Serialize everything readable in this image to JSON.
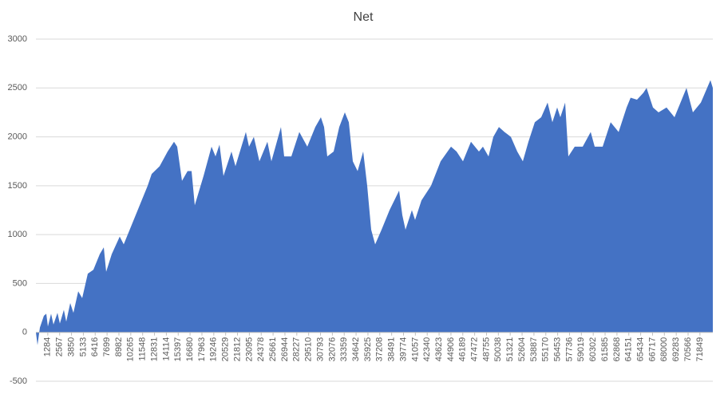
{
  "chart_data": {
    "type": "area",
    "title": "Net",
    "color": "#4472c4",
    "grid": true,
    "xlim": [
      1,
      73242
    ],
    "ylim": [
      -500,
      3000
    ],
    "yticks": [
      -500,
      0,
      500,
      1000,
      1500,
      2000,
      2500,
      3000
    ],
    "xticks": [
      1284,
      2567,
      3850,
      5133,
      6416,
      7699,
      8982,
      10265,
      11548,
      12831,
      14114,
      15397,
      16680,
      17963,
      19246,
      20529,
      21812,
      23095,
      24378,
      25661,
      26944,
      28227,
      29510,
      30793,
      32076,
      33359,
      34642,
      35925,
      37208,
      38491,
      39774,
      41057,
      42340,
      43623,
      44906,
      46189,
      47472,
      48755,
      50038,
      51321,
      52604,
      53887,
      55170,
      56453,
      57736,
      59019,
      60302,
      61585,
      62868,
      64151,
      65434,
      66717,
      68000,
      69283,
      70566,
      71849
    ],
    "x": [
      1,
      173,
      432,
      864,
      1123,
      1296,
      1641,
      1900,
      2332,
      2591,
      3023,
      3282,
      3714,
      4059,
      4578,
      5009,
      5614,
      6219,
      6910,
      7342,
      7601,
      8205,
      9069,
      9501,
      10365,
      11228,
      12092,
      12524,
      13388,
      14251,
      14942,
      15287,
      15806,
      16410,
      16842,
      17188,
      18138,
      19001,
      19433,
      19865,
      20296,
      21160,
      21592,
      22715,
      23060,
      23579,
      24183,
      25047,
      25479,
      26515,
      26861,
      27638,
      28501,
      29365,
      30229,
      30834,
      31180,
      31525,
      32216,
      32821,
      33425,
      33857,
      34289,
      34807,
      35412,
      35844,
      36276,
      36707,
      37398,
      38262,
      39298,
      39644,
      39989,
      40680,
      41026,
      41717,
      42753,
      43790,
      44913,
      45517,
      46208,
      47072,
      47936,
      48367,
      48972,
      49490,
      50095,
      50699,
      51390,
      52081,
      52686,
      53290,
      53981,
      54672,
      55363,
      55881,
      56400,
      56745,
      57263,
      57609,
      58300,
      59164,
      60027,
      60459,
      61323,
      62186,
      63050,
      63914,
      64346,
      65036,
      65727,
      66073,
      66764,
      67369,
      68233,
      69096,
      69528,
      70392,
      71083,
      71946,
      72983,
      73242
    ],
    "values": [
      0,
      -130,
      50,
      170,
      190,
      60,
      190,
      80,
      200,
      90,
      230,
      110,
      300,
      200,
      420,
      350,
      600,
      640,
      800,
      870,
      620,
      800,
      980,
      900,
      1100,
      1300,
      1500,
      1620,
      1700,
      1850,
      1950,
      1900,
      1550,
      1650,
      1650,
      1300,
      1600,
      1900,
      1800,
      1920,
      1600,
      1850,
      1700,
      2050,
      1900,
      2000,
      1750,
      1950,
      1750,
      2100,
      1800,
      1800,
      2050,
      1900,
      2100,
      2200,
      2100,
      1800,
      1850,
      2100,
      2250,
      2150,
      1750,
      1650,
      1850,
      1500,
      1050,
      900,
      1050,
      1250,
      1450,
      1200,
      1050,
      1250,
      1150,
      1350,
      1500,
      1750,
      1900,
      1850,
      1750,
      1950,
      1850,
      1900,
      1800,
      2000,
      2100,
      2050,
      2000,
      1850,
      1750,
      1950,
      2150,
      2200,
      2350,
      2150,
      2300,
      2200,
      2350,
      1800,
      1900,
      1900,
      2050,
      1900,
      1900,
      2150,
      2050,
      2300,
      2400,
      2380,
      2450,
      2500,
      2300,
      2250,
      2300,
      2200,
      2300,
      2500,
      2250,
      2350,
      2580,
      2500
    ]
  }
}
